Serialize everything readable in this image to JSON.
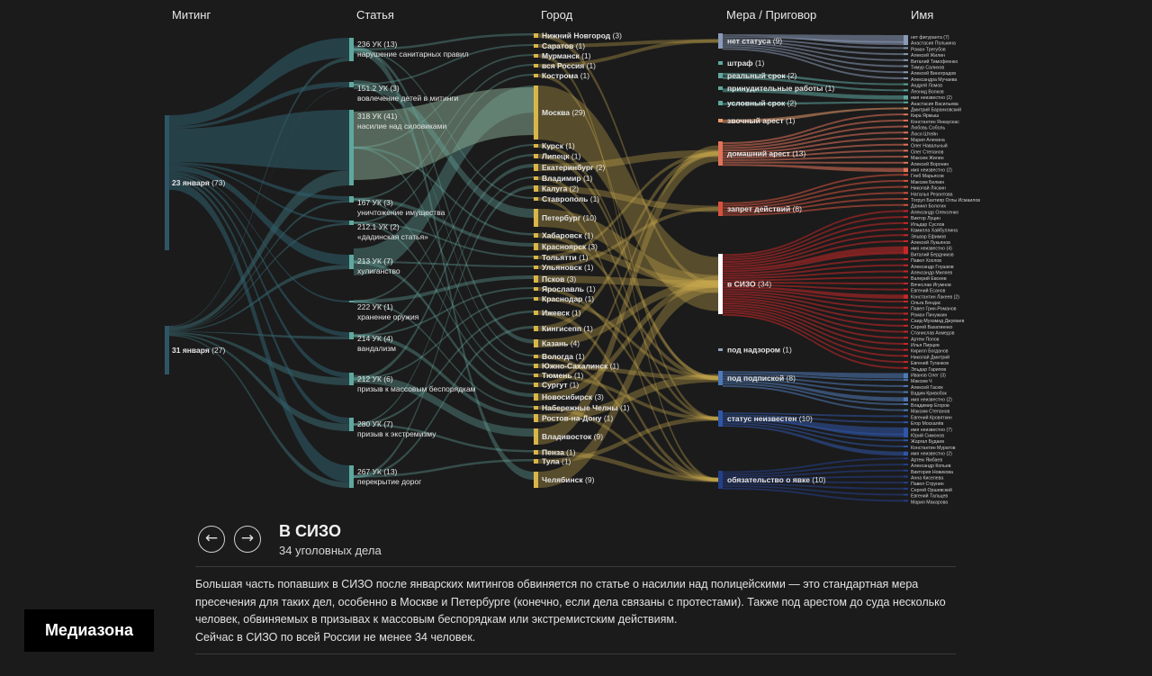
{
  "columns": [
    "Митинг",
    "Статья",
    "Город",
    "Мера / Приговор",
    "Имя"
  ],
  "colors": {
    "background": "#1b1b1b",
    "rally": "#1e3a4a",
    "article": "#5fa8a0",
    "city": "#d9b64a",
    "measure_prison": "#c62828",
    "neutral": "#8ea0b8"
  },
  "rallies": [
    {
      "label": "23 января",
      "count": "(73)",
      "color": "#2e5566"
    },
    {
      "label": "31 января",
      "count": "(27)",
      "color": "#2e5566"
    }
  ],
  "articles": [
    {
      "code": "236 УК",
      "count": "(13)",
      "desc": "нарушение санитарных правил"
    },
    {
      "code": "151.2 УК",
      "count": "(3)",
      "desc": "вовлечение детей в митинги"
    },
    {
      "code": "318 УК",
      "count": "(41)",
      "desc": "насилие над силовиками"
    },
    {
      "code": "167 УК",
      "count": "(3)",
      "desc": "уничтожение имущества"
    },
    {
      "code": "212.1 УК",
      "count": "(2)",
      "desc": "«дадинская статья»"
    },
    {
      "code": "213 УК",
      "count": "(7)",
      "desc": "хулиганство"
    },
    {
      "code": "222 УК",
      "count": "(1)",
      "desc": "хранение оружия"
    },
    {
      "code": "214 УК",
      "count": "(4)",
      "desc": "вандализм"
    },
    {
      "code": "212 УК",
      "count": "(6)",
      "desc": "призыв к массовым беспорядкам"
    },
    {
      "code": "280 УК",
      "count": "(7)",
      "desc": "призыв к экстремизму"
    },
    {
      "code": "267 УК",
      "count": "(13)",
      "desc": "перекрытие дорог"
    }
  ],
  "cities": [
    {
      "label": "Нижний Новгород",
      "count": "(3)"
    },
    {
      "label": "Саратов",
      "count": "(1)"
    },
    {
      "label": "Мурманск",
      "count": "(1)"
    },
    {
      "label": "вся Россия",
      "count": "(1)"
    },
    {
      "label": "Кострома",
      "count": "(1)"
    },
    {
      "label": "Москва",
      "count": "(29)"
    },
    {
      "label": "Курск",
      "count": "(1)"
    },
    {
      "label": "Липецк",
      "count": "(1)"
    },
    {
      "label": "Екатеринбург",
      "count": "(2)"
    },
    {
      "label": "Владимир",
      "count": "(1)"
    },
    {
      "label": "Калуга",
      "count": "(2)"
    },
    {
      "label": "Ставрополь",
      "count": "(1)"
    },
    {
      "label": "Петербург",
      "count": "(10)"
    },
    {
      "label": "Хабаровск",
      "count": "(1)"
    },
    {
      "label": "Красноярск",
      "count": "(3)"
    },
    {
      "label": "Тольятти",
      "count": "(1)"
    },
    {
      "label": "Ульяновск",
      "count": "(1)"
    },
    {
      "label": "Псков",
      "count": "(3)"
    },
    {
      "label": "Ярославль",
      "count": "(1)"
    },
    {
      "label": "Краснодар",
      "count": "(1)"
    },
    {
      "label": "Ижевск",
      "count": "(1)"
    },
    {
      "label": "Кингисепп",
      "count": "(1)"
    },
    {
      "label": "Казань",
      "count": "(4)"
    },
    {
      "label": "Вологда",
      "count": "(1)"
    },
    {
      "label": "Южно-Сахалинск",
      "count": "(1)"
    },
    {
      "label": "Тюмень",
      "count": "(1)"
    },
    {
      "label": "Сургут",
      "count": "(1)"
    },
    {
      "label": "Новосибирск",
      "count": "(3)"
    },
    {
      "label": "Набережные Челны",
      "count": "(1)"
    },
    {
      "label": "Ростов-на-Дону",
      "count": "(1)"
    },
    {
      "label": "Владивосток",
      "count": "(9)"
    },
    {
      "label": "Пенза",
      "count": "(1)"
    },
    {
      "label": "Тула",
      "count": "(1)"
    },
    {
      "label": "Челябинск",
      "count": "(9)"
    }
  ],
  "measures": [
    {
      "label": "нет статуса",
      "count": "(9)",
      "color": "#8a9ab8"
    },
    {
      "label": "штраф",
      "count": "(1)",
      "color": "#5fa8a0"
    },
    {
      "label": "реальный срок",
      "count": "(2)",
      "color": "#5fa8a0"
    },
    {
      "label": "принудительные работы",
      "count": "(1)",
      "color": "#5fa8a0"
    },
    {
      "label": "условный срок",
      "count": "(2)",
      "color": "#5fa8a0"
    },
    {
      "label": "звочный арест",
      "count": "(1)",
      "color": "#e89a6a"
    },
    {
      "label": "домашний арест",
      "count": "(13)",
      "color": "#e0735a"
    },
    {
      "label": "запрет действий",
      "count": "(8)",
      "color": "#d4533e"
    },
    {
      "label": "в СИЗО",
      "count": "(34)",
      "color": "#ffffff"
    },
    {
      "label": "под надзором",
      "count": "(1)",
      "color": "#8ea0b8"
    },
    {
      "label": "под подпиской",
      "count": "(8)",
      "color": "#4f7ab8"
    },
    {
      "label": "статус неизвестен",
      "count": "(10)",
      "color": "#2f56a8"
    },
    {
      "label": "обязательство о явке",
      "count": "(10)",
      "color": "#243f8a"
    }
  ],
  "names": [
    "нет фигуранта (7)",
    "Анастасия Полькина",
    "Роман Трегубов",
    "Алексей Жилин",
    "Виталий Тимофеенко",
    "Тимур Салихов",
    "Алексей Виноградов",
    "Александра Мучаева",
    "Андрей Ломов",
    "Леонид Волков",
    "имя неизвестно (2)",
    "Анастасия Васильева",
    "Дмитрий Баранковский",
    "Кира Ярмыш",
    "Константин Янкаускас",
    "Любовь Соболь",
    "Люся Штейн",
    "Мария Алехина",
    "Олег Навальный",
    "Олег Степанов",
    "Максим Жилин",
    "Алексей Воронин",
    "имя неизвестно (2)",
    "Глеб Марьясов",
    "Максим Белкин",
    "Николай Ляскин",
    "Наталья Резонтова",
    "Тогрул Бахтияр Оглы Исмаилов",
    "Даниил Бологих",
    "Александр Олексенко",
    "Виктор Луцин",
    "Ильдар Суслов",
    "Камилла Хайбуллина",
    "Эльвар Ефимов",
    "Алексей Лукьянов",
    "имя неизвестно (4)",
    "Виталий Бердников",
    "Павел Хохлов",
    "Александр Глушков",
    "Александр Миляев",
    "Валерий Евсеев",
    "Вячеслав Игумнов",
    "Евгений Есанов",
    "Константин Лакеев (2)",
    "Ольга Бендас",
    "Павел Грин-Романов",
    "Роман Пичужкин",
    "Саид-Мухамад Джумаев",
    "Сергей Вахатиенко",
    "Станислав Ахмедов",
    "Артем Попов",
    "Илья Пирцев",
    "Кирилл Богданов",
    "Николай Дмитрий",
    "Евгений Туганков",
    "Эльдар Гарипов",
    "Иванов Олег (3)",
    "Максим Ч",
    "Алексей Гасюк",
    "Вадим Кривобок",
    "имя неизвестно (2)",
    "Владимир Егоров",
    "Максим Степанов",
    "Евгений Кровяткин",
    "Егор Москалёв",
    "имя неизвестно (7)",
    "Юрий Симонов",
    "Жаргал Будаев",
    "Константин Муратов",
    "имя неизвестно (2)",
    "Артем Ямбаев",
    "Александр Копьев",
    "Виктория Новикова",
    "Анна Киселева",
    "Павел Струнин",
    "Сергей Оршевский",
    "Евгений Тальцев",
    "Мария Макарова"
  ],
  "panel": {
    "prev_icon": "arrow-left-icon",
    "next_icon": "arrow-right-icon",
    "prev_glyph": "←",
    "next_glyph": "→",
    "title": "В СИЗО",
    "subtitle": "34 уголовных дела",
    "paragraph1": "Большая часть попавших в СИЗО после январских митингов обвиняется по статье о насилии над полицейскими — это стандартная мера пресечения для таких дел, особенно в Москве и Петербурге (конечно, если дела связаны с протестами). Также под арестом до суда несколько человек, обвиняемых в призывах к массовым беспорядкам или экстремистским действиям.",
    "paragraph2": "Сейчас в СИЗО по всей России не менее 34 человек."
  },
  "logo": "Медиазона"
}
